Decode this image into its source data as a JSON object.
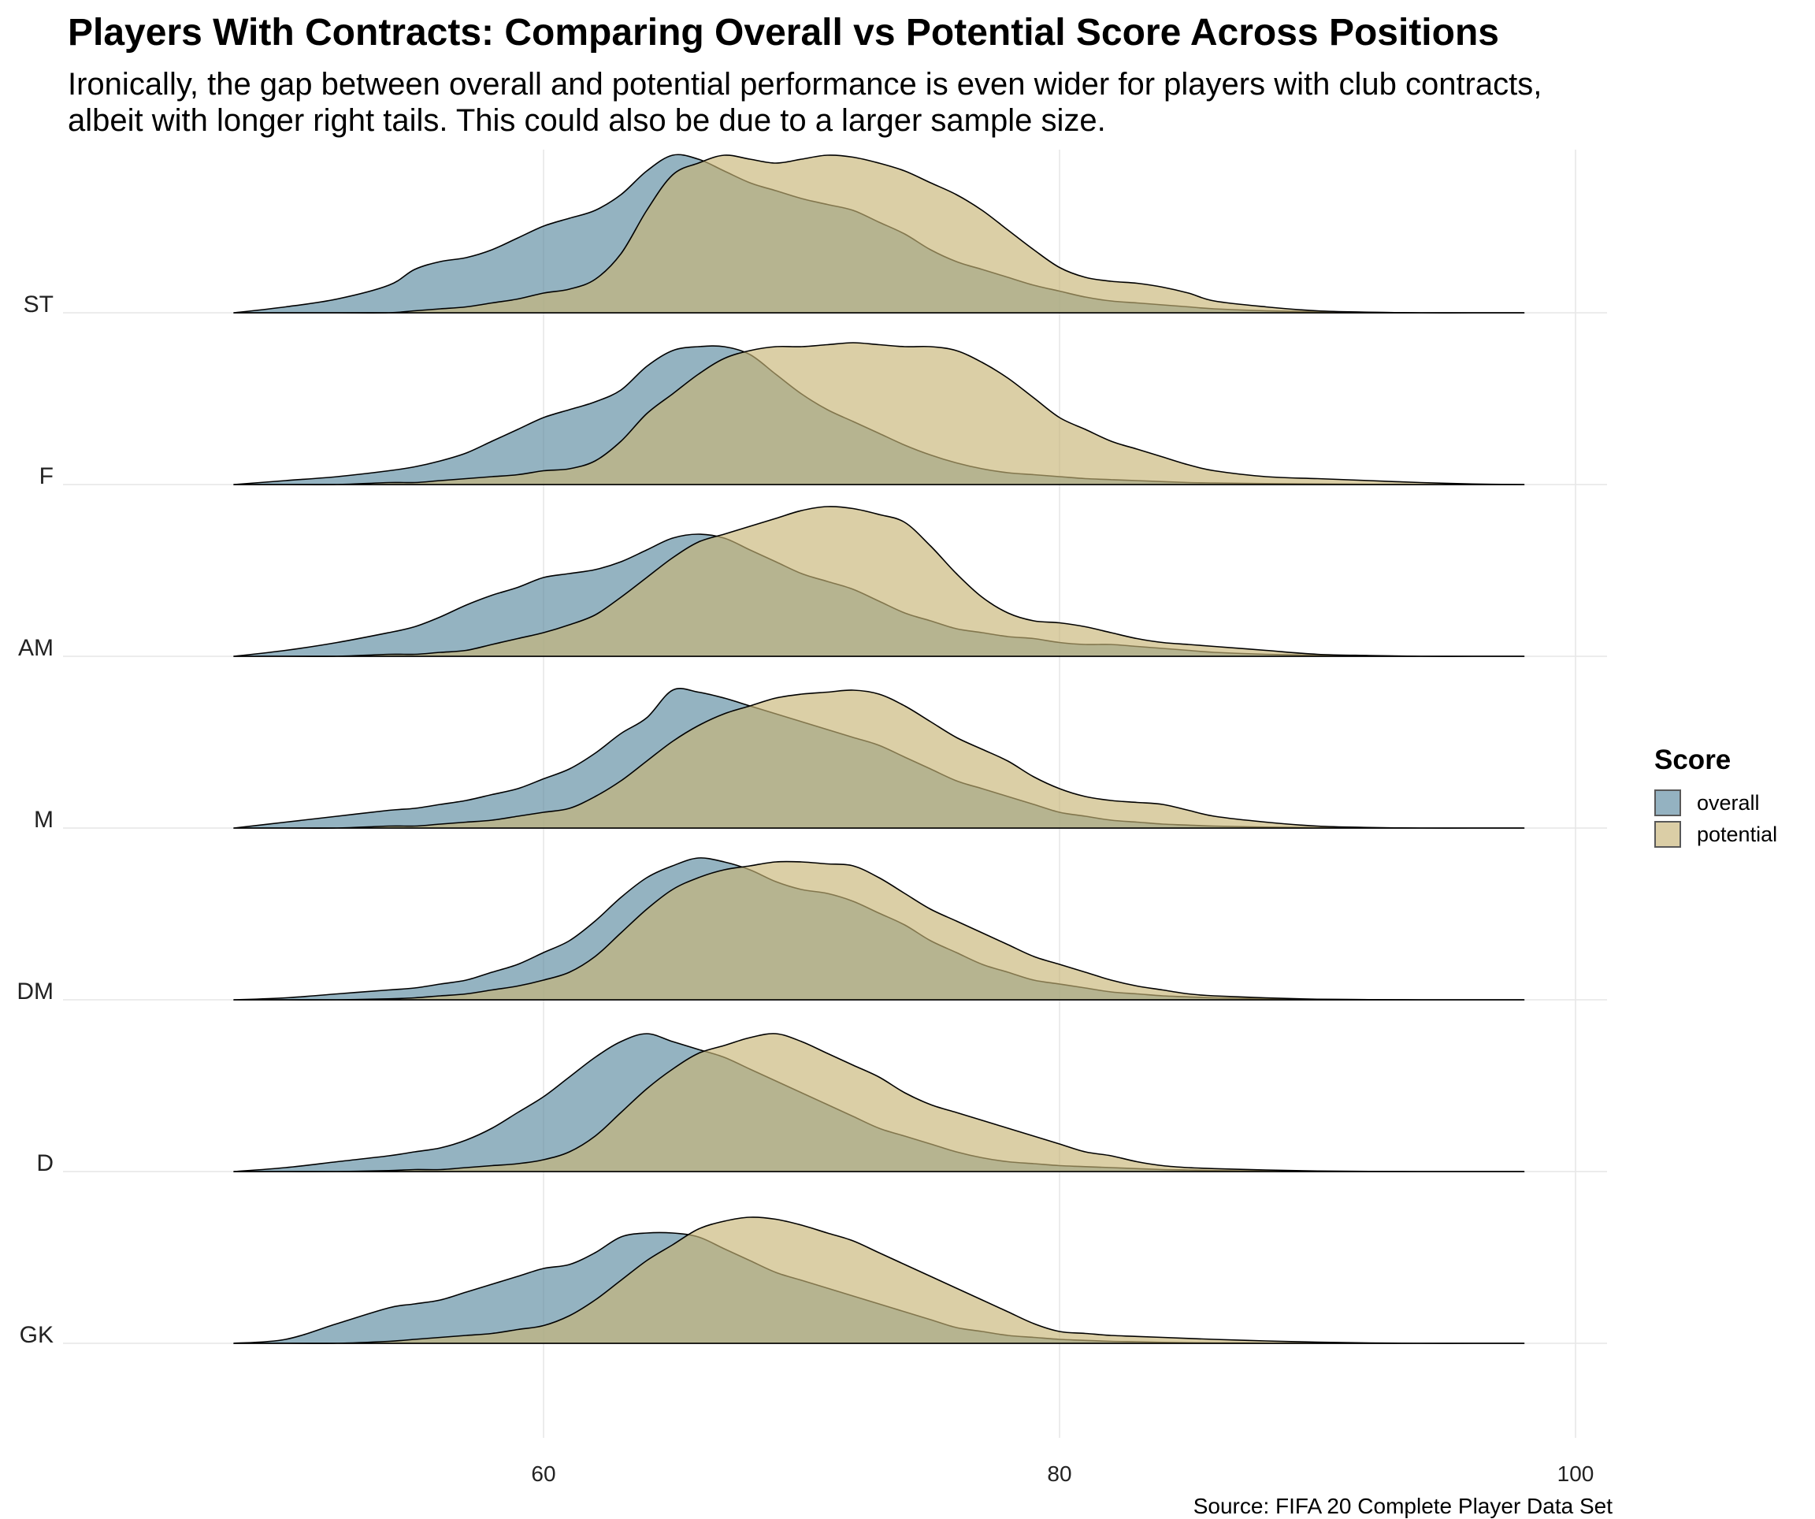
{
  "title": "Players With Contracts: Comparing Overall vs Potential Score Across Positions",
  "subtitle": "Ironically, the gap between overall and potential performance is even wider for players with club contracts,\nalbeit with longer right tails. This could also be due to a larger sample size.",
  "caption": "Source: FIFA 20 Complete Player Data Set",
  "legend": {
    "title": "Score",
    "items": [
      {
        "label": "overall",
        "color": "#5b8aa0"
      },
      {
        "label": "potential",
        "color": "#c8b577"
      }
    ]
  },
  "colors": {
    "overall_fill": "#5b8aa0",
    "potential_fill": "#c8b577",
    "outline": "#000000",
    "grid": "#e6e6e6"
  },
  "chart_data": {
    "type": "area",
    "subtype": "ridgeline density",
    "x_axis": {
      "range": [
        44,
        102
      ],
      "ticks": [
        60,
        80,
        100
      ],
      "tick_labels": [
        "60",
        "80",
        "100"
      ],
      "label": ""
    },
    "y_axis": {
      "categories": [
        "ST",
        "F",
        "AM",
        "M",
        "DM",
        "D",
        "GK"
      ],
      "label": ""
    },
    "grid": true,
    "legend_position": "right",
    "series": [
      {
        "name": "overall",
        "color": "#5b8aa0"
      },
      {
        "name": "potential",
        "color": "#c8b577"
      }
    ],
    "x": [
      48,
      50,
      52,
      54,
      55,
      56,
      57,
      58,
      59,
      60,
      61,
      62,
      63,
      64,
      65,
      66,
      67,
      68,
      69,
      70,
      71,
      72,
      73,
      74,
      75,
      76,
      77,
      78,
      79,
      80,
      81,
      82,
      83,
      84,
      85,
      86,
      88,
      90,
      92,
      94,
      96,
      98
    ],
    "ridges": [
      {
        "position": "ST",
        "overall": [
          0,
          0.03,
          0.07,
          0.14,
          0.22,
          0.26,
          0.28,
          0.32,
          0.38,
          0.44,
          0.48,
          0.52,
          0.6,
          0.72,
          0.8,
          0.78,
          0.72,
          0.66,
          0.62,
          0.58,
          0.55,
          0.52,
          0.46,
          0.4,
          0.32,
          0.26,
          0.22,
          0.18,
          0.14,
          0.11,
          0.08,
          0.06,
          0.05,
          0.04,
          0.03,
          0.02,
          0.01,
          0.005,
          0.002,
          0,
          0,
          0
        ],
        "potential": [
          0,
          0,
          0,
          0,
          0.01,
          0.02,
          0.03,
          0.05,
          0.07,
          0.1,
          0.12,
          0.17,
          0.3,
          0.52,
          0.7,
          0.76,
          0.8,
          0.78,
          0.76,
          0.78,
          0.8,
          0.79,
          0.76,
          0.72,
          0.66,
          0.6,
          0.52,
          0.42,
          0.32,
          0.23,
          0.18,
          0.16,
          0.15,
          0.13,
          0.1,
          0.06,
          0.03,
          0.01,
          0.003,
          0,
          0,
          0
        ]
      },
      {
        "position": "F",
        "overall": [
          0,
          0.02,
          0.04,
          0.07,
          0.09,
          0.12,
          0.16,
          0.22,
          0.28,
          0.34,
          0.38,
          0.42,
          0.48,
          0.6,
          0.68,
          0.7,
          0.7,
          0.66,
          0.56,
          0.46,
          0.38,
          0.32,
          0.26,
          0.2,
          0.15,
          0.11,
          0.08,
          0.06,
          0.05,
          0.04,
          0.03,
          0.025,
          0.02,
          0.015,
          0.01,
          0.008,
          0.005,
          0.003,
          0.001,
          0,
          0,
          0
        ],
        "potential": [
          0,
          0,
          0,
          0.01,
          0.01,
          0.02,
          0.03,
          0.04,
          0.05,
          0.07,
          0.08,
          0.12,
          0.22,
          0.36,
          0.46,
          0.56,
          0.64,
          0.68,
          0.7,
          0.7,
          0.71,
          0.72,
          0.71,
          0.7,
          0.7,
          0.68,
          0.62,
          0.54,
          0.44,
          0.34,
          0.28,
          0.22,
          0.18,
          0.14,
          0.1,
          0.07,
          0.04,
          0.03,
          0.02,
          0.01,
          0.003,
          0
        ]
      },
      {
        "position": "AM",
        "overall": [
          0,
          0.03,
          0.07,
          0.12,
          0.15,
          0.2,
          0.26,
          0.31,
          0.35,
          0.4,
          0.42,
          0.44,
          0.48,
          0.54,
          0.6,
          0.62,
          0.6,
          0.54,
          0.48,
          0.42,
          0.38,
          0.34,
          0.28,
          0.22,
          0.18,
          0.14,
          0.12,
          0.1,
          0.09,
          0.07,
          0.06,
          0.06,
          0.05,
          0.04,
          0.03,
          0.02,
          0.01,
          0.005,
          0.002,
          0,
          0,
          0
        ],
        "potential": [
          0,
          0,
          0,
          0.01,
          0.01,
          0.02,
          0.03,
          0.06,
          0.09,
          0.12,
          0.16,
          0.21,
          0.3,
          0.4,
          0.5,
          0.58,
          0.62,
          0.66,
          0.7,
          0.74,
          0.76,
          0.75,
          0.72,
          0.68,
          0.56,
          0.42,
          0.3,
          0.22,
          0.18,
          0.17,
          0.15,
          0.12,
          0.09,
          0.07,
          0.06,
          0.05,
          0.03,
          0.01,
          0.004,
          0,
          0,
          0
        ]
      },
      {
        "position": "M",
        "overall": [
          0,
          0.03,
          0.06,
          0.09,
          0.1,
          0.12,
          0.14,
          0.17,
          0.2,
          0.25,
          0.3,
          0.38,
          0.48,
          0.56,
          0.7,
          0.69,
          0.66,
          0.62,
          0.58,
          0.54,
          0.5,
          0.46,
          0.42,
          0.36,
          0.3,
          0.24,
          0.2,
          0.16,
          0.12,
          0.08,
          0.06,
          0.04,
          0.03,
          0.02,
          0.015,
          0.01,
          0.005,
          0.002,
          0.001,
          0,
          0,
          0
        ],
        "potential": [
          0,
          0,
          0,
          0.01,
          0.01,
          0.02,
          0.03,
          0.04,
          0.06,
          0.08,
          0.1,
          0.16,
          0.24,
          0.34,
          0.44,
          0.52,
          0.58,
          0.62,
          0.66,
          0.68,
          0.69,
          0.7,
          0.68,
          0.62,
          0.54,
          0.46,
          0.4,
          0.34,
          0.26,
          0.2,
          0.16,
          0.14,
          0.13,
          0.12,
          0.09,
          0.06,
          0.03,
          0.01,
          0.003,
          0,
          0,
          0
        ]
      },
      {
        "position": "DM",
        "overall": [
          0,
          0.01,
          0.03,
          0.05,
          0.06,
          0.08,
          0.1,
          0.14,
          0.18,
          0.24,
          0.3,
          0.4,
          0.52,
          0.62,
          0.68,
          0.72,
          0.7,
          0.66,
          0.6,
          0.56,
          0.54,
          0.5,
          0.44,
          0.38,
          0.3,
          0.24,
          0.18,
          0.14,
          0.1,
          0.08,
          0.06,
          0.04,
          0.03,
          0.02,
          0.015,
          0.01,
          0.005,
          0.002,
          0.001,
          0,
          0,
          0
        ],
        "potential": [
          0,
          0,
          0,
          0.005,
          0.01,
          0.02,
          0.03,
          0.05,
          0.07,
          0.1,
          0.14,
          0.22,
          0.34,
          0.46,
          0.56,
          0.62,
          0.66,
          0.68,
          0.7,
          0.7,
          0.69,
          0.68,
          0.62,
          0.54,
          0.46,
          0.4,
          0.34,
          0.28,
          0.22,
          0.18,
          0.14,
          0.1,
          0.07,
          0.05,
          0.03,
          0.02,
          0.01,
          0.003,
          0.001,
          0,
          0,
          0
        ]
      },
      {
        "position": "D",
        "overall": [
          0,
          0.02,
          0.05,
          0.08,
          0.1,
          0.12,
          0.16,
          0.22,
          0.3,
          0.38,
          0.48,
          0.58,
          0.66,
          0.7,
          0.66,
          0.62,
          0.58,
          0.52,
          0.46,
          0.4,
          0.34,
          0.28,
          0.22,
          0.18,
          0.14,
          0.1,
          0.07,
          0.05,
          0.04,
          0.03,
          0.025,
          0.02,
          0.015,
          0.01,
          0.008,
          0.005,
          0.003,
          0.001,
          0,
          0,
          0,
          0
        ],
        "potential": [
          0,
          0,
          0,
          0.005,
          0.01,
          0.01,
          0.02,
          0.03,
          0.04,
          0.06,
          0.1,
          0.18,
          0.3,
          0.42,
          0.52,
          0.6,
          0.64,
          0.68,
          0.7,
          0.66,
          0.6,
          0.54,
          0.48,
          0.4,
          0.34,
          0.3,
          0.26,
          0.22,
          0.18,
          0.14,
          0.1,
          0.08,
          0.05,
          0.03,
          0.02,
          0.015,
          0.008,
          0.003,
          0.001,
          0,
          0,
          0
        ]
      },
      {
        "position": "GK",
        "overall": [
          0,
          0.02,
          0.1,
          0.18,
          0.2,
          0.22,
          0.26,
          0.3,
          0.34,
          0.38,
          0.4,
          0.46,
          0.54,
          0.56,
          0.56,
          0.54,
          0.48,
          0.42,
          0.36,
          0.32,
          0.28,
          0.24,
          0.2,
          0.16,
          0.12,
          0.08,
          0.06,
          0.04,
          0.03,
          0.02,
          0.015,
          0.01,
          0.008,
          0.005,
          0.003,
          0.002,
          0.001,
          0,
          0,
          0,
          0,
          0
        ],
        "potential": [
          0,
          0,
          0,
          0.01,
          0.02,
          0.03,
          0.04,
          0.05,
          0.07,
          0.09,
          0.14,
          0.22,
          0.32,
          0.42,
          0.5,
          0.58,
          0.62,
          0.64,
          0.63,
          0.6,
          0.56,
          0.52,
          0.46,
          0.4,
          0.34,
          0.28,
          0.22,
          0.16,
          0.1,
          0.06,
          0.05,
          0.04,
          0.035,
          0.03,
          0.025,
          0.02,
          0.012,
          0.006,
          0.002,
          0,
          0,
          0
        ]
      }
    ]
  }
}
